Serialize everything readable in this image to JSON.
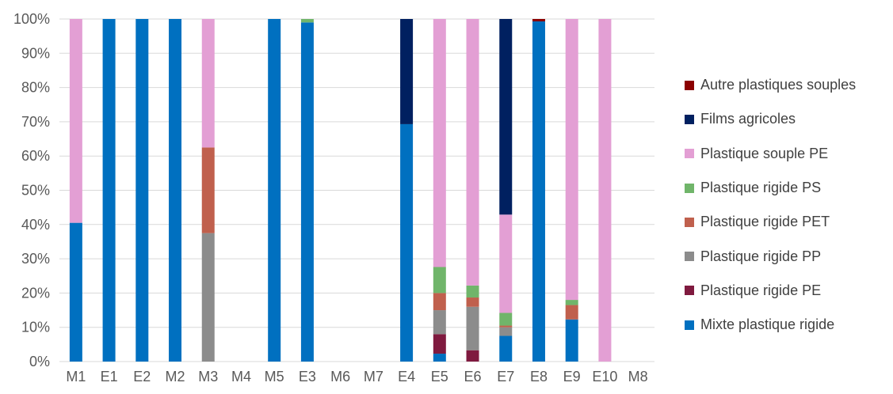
{
  "chart_data": {
    "type": "bar",
    "stacked": true,
    "percent": true,
    "categories": [
      "M1",
      "E1",
      "E2",
      "M2",
      "M3",
      "M4",
      "M5",
      "E3",
      "M6",
      "M7",
      "E4",
      "E5",
      "E6",
      "E7",
      "E8",
      "E9",
      "E10",
      "M8"
    ],
    "y_ticks": [
      "0%",
      "10%",
      "20%",
      "30%",
      "40%",
      "50%",
      "60%",
      "70%",
      "80%",
      "90%",
      "100%"
    ],
    "ylim": [
      0,
      100
    ],
    "grid": true,
    "legend_position": "right",
    "series": [
      {
        "name": "Mixte plastique rigide",
        "color": "#0070c0",
        "values": [
          40.5,
          100,
          100,
          100,
          0,
          0,
          100,
          99,
          0,
          0,
          69.3,
          2.3,
          0,
          7.5,
          99.3,
          12.3,
          0,
          0
        ]
      },
      {
        "name": "Plastique rigide PE",
        "color": "#7f1a3f",
        "values": [
          0,
          0,
          0,
          0,
          0,
          0,
          0,
          0,
          0,
          0,
          0,
          5.7,
          3.3,
          0,
          0,
          0,
          0,
          0
        ]
      },
      {
        "name": "Plastique rigide PP",
        "color": "#8c8c8c",
        "values": [
          0,
          0,
          0,
          0,
          37.5,
          0,
          0,
          0,
          0,
          0,
          0,
          7,
          12.7,
          2.5,
          0,
          0,
          0,
          0
        ]
      },
      {
        "name": "Plastique rigide PET",
        "color": "#c0604d",
        "values": [
          0,
          0,
          0,
          0,
          25,
          0,
          0,
          0,
          0,
          0,
          0,
          5,
          2.7,
          0.5,
          0,
          4.2,
          0,
          0
        ]
      },
      {
        "name": "Plastique rigide PS",
        "color": "#70b56a",
        "values": [
          0,
          0,
          0,
          0,
          0,
          0,
          0,
          1,
          0,
          0,
          0,
          7.6,
          3.5,
          3.7,
          0,
          1.5,
          0,
          0
        ]
      },
      {
        "name": "Plastique souple PE",
        "color": "#e39fd4",
        "values": [
          59.5,
          0,
          0,
          0,
          37.5,
          0,
          0,
          0,
          0,
          0,
          0,
          72.4,
          77.8,
          28.7,
          0,
          82,
          100,
          0
        ]
      },
      {
        "name": "Films agricoles",
        "color": "#002060",
        "values": [
          0,
          0,
          0,
          0,
          0,
          0,
          0,
          0,
          0,
          0,
          30.7,
          0,
          0,
          57.1,
          0,
          0,
          0,
          0
        ]
      },
      {
        "name": "Autre plastiques souples",
        "color": "#8b0000",
        "values": [
          0,
          0,
          0,
          0,
          0,
          0,
          0,
          0,
          0,
          0,
          0,
          0,
          0,
          0,
          0.7,
          0,
          0,
          0
        ]
      }
    ]
  }
}
